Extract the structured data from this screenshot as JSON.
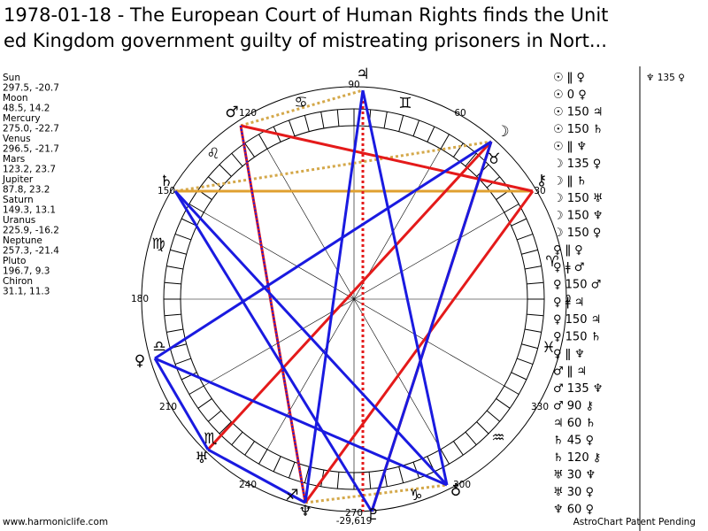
{
  "header": {
    "title_lines": [
      "1978-01-18 - The European Court of Human Rights finds the Unit",
      "ed Kingdom government guilty of mistreating prisoners in Nort..."
    ]
  },
  "planets": [
    {
      "name": "Sun",
      "coords": "297.5, -20.7"
    },
    {
      "name": "Moon",
      "coords": "48.5, 14.2"
    },
    {
      "name": "Mercury",
      "coords": "275.0, -22.7"
    },
    {
      "name": "Venus",
      "coords": "296.5, -21.7"
    },
    {
      "name": "Mars",
      "coords": "123.2, 23.7"
    },
    {
      "name": "Jupiter",
      "coords": "87.8, 23.2"
    },
    {
      "name": "Saturn",
      "coords": "149.3, 13.1"
    },
    {
      "name": "Uranus",
      "coords": "225.9, -16.2"
    },
    {
      "name": "Neptune",
      "coords": "257.3, -21.4"
    },
    {
      "name": "Pluto",
      "coords": "196.7, 9.3"
    },
    {
      "name": "Chiron",
      "coords": "31.1, 11.3"
    }
  ],
  "aspects": [
    "☉ ǁ ♀",
    "☉ 0 ♀",
    "☉ 150 ♃",
    "☉ 150 ♄",
    "☉ ǁ ♆",
    "☽ 135 ♀",
    "☽ ǁ ♄",
    "☽ 150 ♅",
    "☽ 150 ♆",
    "☽ 150 ♀",
    "♀ ǁ ♀",
    "♀ ǂ ♂",
    "♀ 150 ♂",
    "♀ ǂ ♃",
    "♀ 150 ♃",
    "♀ 150 ♄",
    "♀ ǁ ♆",
    "♂ ǁ ♃",
    "♂ 135 ♆",
    "♂ 90 ⚷",
    "♃ 60 ♄",
    "♄ 45 ♀",
    "♄ 120 ⚷",
    "♅ 30 ♆",
    "♅ 30 ♀",
    "♆ 60 ♀"
  ],
  "aspects_extra": "♆ 135 ♀",
  "wheel": {
    "degree_labels": [
      "90",
      "60",
      "30",
      "0",
      "330",
      "300",
      "270",
      "240",
      "210",
      "180",
      "150",
      "120"
    ],
    "signs": [
      "♊",
      "♉",
      "♈",
      "♓",
      "♒",
      "♑",
      "♐",
      "♏",
      "♎",
      "♍",
      "♌",
      "♋"
    ],
    "planet_glyphs": [
      "♃",
      "♂",
      "♄",
      "☽",
      "⚷",
      "♀",
      "♅",
      "♆",
      "♇",
      "♁"
    ],
    "bottom_value": "-29,619"
  },
  "footer": {
    "left": "www.harmoniclife.com",
    "right": "AstroChart Patent Pending"
  }
}
